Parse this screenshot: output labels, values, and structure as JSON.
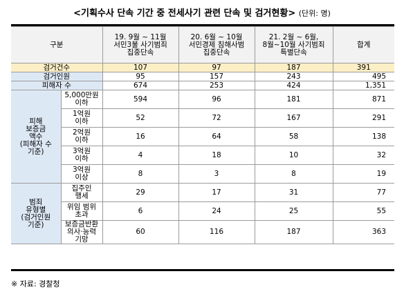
{
  "title": "<기획수사 단속 기간 중 전세사기 관련 단속 및 검거현황>",
  "unit": "(단위: 명)",
  "header": {
    "category": "구분",
    "col1": "19. 9월 ~ 11월\n서민3불 사기범죄\n집중단속",
    "col2": "20. 6월 ~ 10월\n서민경제 침해사범\n집중단속",
    "col3": "21. 2월 ~ 6월,\n8월~10월 사기범죄\n특별단속",
    "total": "합계"
  },
  "summary_rows": [
    {
      "label": "검거건수",
      "v1": "107",
      "v2": "97",
      "v3": "187",
      "total": "391"
    },
    {
      "label": "검거인원",
      "v1": "95",
      "v2": "157",
      "v3": "243",
      "total": "495"
    },
    {
      "label": "피해자 수",
      "v1": "674",
      "v2": "253",
      "v3": "424",
      "total": "1,351"
    }
  ],
  "group1": {
    "label": "피해\n보증금\n액수\n(피해자 수\n기준)",
    "rows": [
      {
        "label": "5,000만원\n이하",
        "v1": "594",
        "v2": "96",
        "v3": "181",
        "total": "871"
      },
      {
        "label": "1억원\n이하",
        "v1": "52",
        "v2": "72",
        "v3": "167",
        "total": "291"
      },
      {
        "label": "2억원\n이하",
        "v1": "16",
        "v2": "64",
        "v3": "58",
        "total": "138"
      },
      {
        "label": "3억원\n이하",
        "v1": "4",
        "v2": "18",
        "v3": "10",
        "total": "32"
      },
      {
        "label": "3억원\n이상",
        "v1": "8",
        "v2": "3",
        "v3": "8",
        "total": "19"
      }
    ]
  },
  "group2": {
    "label": "범죄\n유형별\n(검거인원\n기준)",
    "rows": [
      {
        "label": "집주인\n행세",
        "v1": "29",
        "v2": "17",
        "v3": "31",
        "total": "77"
      },
      {
        "label": "위임 범위\n초과",
        "v1": "6",
        "v2": "24",
        "v3": "25",
        "total": "55"
      },
      {
        "label": "보증금반환\n의사·능력\n기망",
        "v1": "60",
        "v2": "116",
        "v3": "187",
        "total": "363"
      }
    ]
  },
  "footer": "※ 자료: 경찰청"
}
